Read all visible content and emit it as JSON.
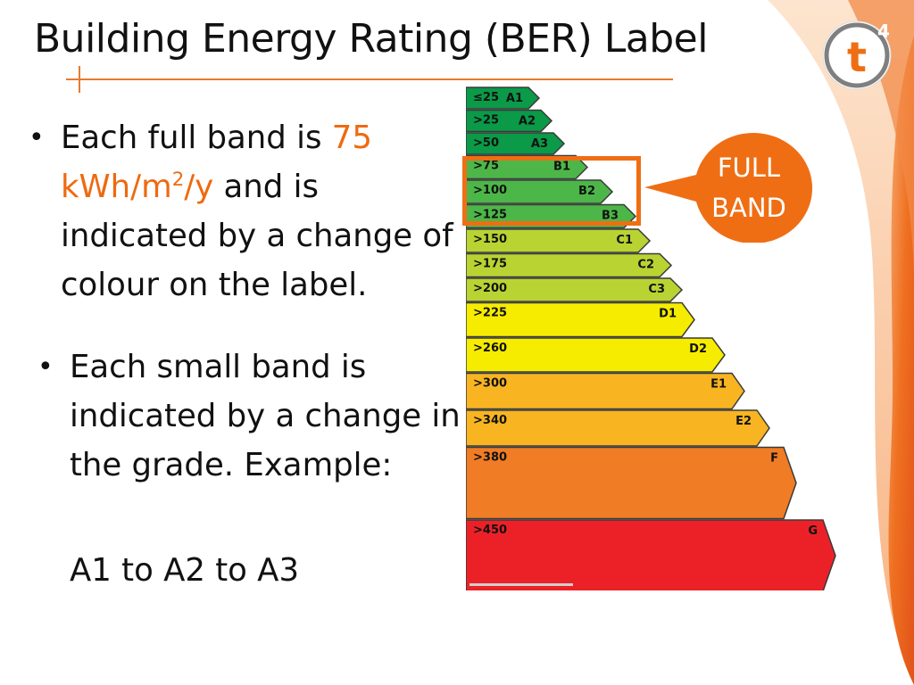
{
  "title": "Building Energy Rating (BER) Label",
  "bullets": {
    "first": {
      "text_before": "Each full band is ",
      "highlight_number": "75",
      "highlight_unit_a": "kWh/m",
      "highlight_sup": "2",
      "highlight_unit_b": "/y",
      "text_after": " and is indicated by a change of colour on the label."
    },
    "second": {
      "text": "Each small band is indicated by a change in the grade. Example:",
      "example": "A1 to A2 to A3"
    }
  },
  "callout": {
    "line1": "FULL",
    "line2": "BAND"
  },
  "logo": {
    "letter": "t",
    "superscript": "4"
  },
  "ber_bands": [
    {
      "threshold": "≤25",
      "grade": "A1",
      "color": "#0a9a48"
    },
    {
      "threshold": ">25",
      "grade": "A2",
      "color": "#0a9a48"
    },
    {
      "threshold": ">50",
      "grade": "A3",
      "color": "#0a9a48"
    },
    {
      "threshold": ">75",
      "grade": "B1",
      "color": "#4cb748"
    },
    {
      "threshold": ">100",
      "grade": "B2",
      "color": "#4cb748"
    },
    {
      "threshold": ">125",
      "grade": "B3",
      "color": "#4cb748"
    },
    {
      "threshold": ">150",
      "grade": "C1",
      "color": "#b9d432"
    },
    {
      "threshold": ">175",
      "grade": "C2",
      "color": "#b9d432"
    },
    {
      "threshold": ">200",
      "grade": "C3",
      "color": "#b9d432"
    },
    {
      "threshold": ">225",
      "grade": "D1",
      "color": "#f6ec00"
    },
    {
      "threshold": ">260",
      "grade": "D2",
      "color": "#f6ec00"
    },
    {
      "threshold": ">300",
      "grade": "E1",
      "color": "#f8b521"
    },
    {
      "threshold": ">340",
      "grade": "E2",
      "color": "#f8b521"
    },
    {
      "threshold": ">380",
      "grade": "F",
      "color": "#f07c25"
    },
    {
      "threshold": ">450",
      "grade": "G",
      "color": "#ec2128"
    }
  ],
  "colors": {
    "accent": "#ef6e14",
    "title_rule": "#e77a2e"
  }
}
